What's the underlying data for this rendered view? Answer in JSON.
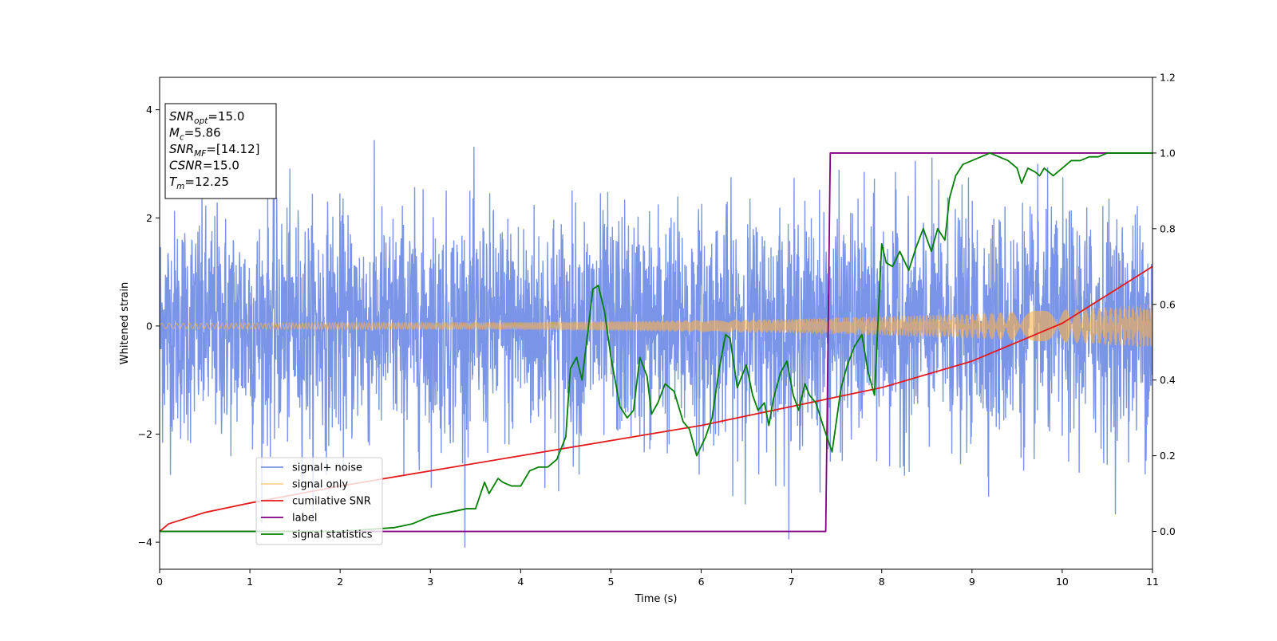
{
  "chart_data": {
    "type": "line",
    "xlabel": "Time (s)",
    "ylabel": "Whitened strain",
    "xlim": [
      0,
      11
    ],
    "ylim": [
      -4.5,
      4.6
    ],
    "y2lim": [
      -0.1,
      1.2
    ],
    "xticks": [
      "0",
      "1",
      "2",
      "3",
      "4",
      "5",
      "6",
      "7",
      "8",
      "9",
      "10",
      "11"
    ],
    "yticks": [
      "−4",
      "−2",
      "0",
      "2",
      "4"
    ],
    "y2ticks": [
      "0.0",
      "0.2",
      "0.4",
      "0.6",
      "0.8",
      "1.0",
      "1.2"
    ],
    "grid": false,
    "legend_position": "lower-left",
    "stats_box": [
      {
        "sym": "SNR",
        "sub": "opt",
        "value": "=15.0"
      },
      {
        "sym": "M",
        "sub": "c",
        "value": "=5.86"
      },
      {
        "sym": "SNR",
        "sub": "MF",
        "value": "=[14.12]"
      },
      {
        "sym": "CSNR",
        "sub": "",
        "value": "=15.0"
      },
      {
        "sym": "T",
        "sub": "m",
        "value": "=12.25"
      }
    ],
    "series": [
      {
        "name": "signal+ noise",
        "color": "#6b88e6",
        "axis": "left",
        "kind": "noise",
        "amplitude_range": [
          -4.1,
          4.2
        ]
      },
      {
        "name": "signal only",
        "color": "#ffb347",
        "axis": "left",
        "kind": "chirp",
        "envelope": {
          "t": [
            0,
            4,
            7,
            8,
            9,
            10,
            11
          ],
          "amp": [
            0.05,
            0.07,
            0.13,
            0.18,
            0.23,
            0.3,
            0.4
          ]
        }
      },
      {
        "name": "cumilative SNR",
        "color": "#e41a1c",
        "axis": "right",
        "x": [
          0,
          0.1,
          0.5,
          1,
          2,
          3,
          4,
          5,
          6,
          7,
          7.5,
          8,
          9,
          10,
          11
        ],
        "y": [
          0.0,
          0.02,
          0.05,
          0.075,
          0.12,
          0.16,
          0.2,
          0.24,
          0.28,
          0.33,
          0.355,
          0.38,
          0.45,
          0.55,
          0.7
        ]
      },
      {
        "name": "label",
        "color": "#800080",
        "axis": "right",
        "x": [
          0,
          7.38,
          7.43,
          11
        ],
        "y": [
          0,
          0,
          1,
          1
        ]
      },
      {
        "name": "signal statistics",
        "color": "#007f00",
        "axis": "right",
        "x": [
          0,
          2.0,
          2.6,
          2.8,
          3.0,
          3.2,
          3.4,
          3.5,
          3.6,
          3.65,
          3.75,
          3.8,
          3.9,
          4.0,
          4.05,
          4.1,
          4.2,
          4.3,
          4.4,
          4.5,
          4.55,
          4.62,
          4.68,
          4.73,
          4.8,
          4.86,
          4.93,
          5.0,
          5.1,
          5.18,
          5.25,
          5.32,
          5.4,
          5.45,
          5.52,
          5.6,
          5.7,
          5.8,
          5.87,
          5.95,
          6.05,
          6.12,
          6.2,
          6.27,
          6.32,
          6.4,
          6.5,
          6.57,
          6.63,
          6.7,
          6.75,
          6.8,
          6.88,
          6.95,
          7.02,
          7.08,
          7.15,
          7.2,
          7.27,
          7.35,
          7.45,
          7.55,
          7.62,
          7.7,
          7.78,
          7.85,
          7.92,
          8.0,
          8.05,
          8.12,
          8.2,
          8.3,
          8.38,
          8.46,
          8.55,
          8.62,
          8.7,
          8.75,
          8.82,
          8.9,
          9.0,
          9.1,
          9.2,
          9.3,
          9.4,
          9.5,
          9.55,
          9.62,
          9.7,
          9.75,
          9.8,
          9.9,
          10.0,
          10.1,
          10.2,
          10.3,
          10.4,
          10.5,
          11.0
        ],
        "y": [
          0,
          0.0,
          0.01,
          0.02,
          0.04,
          0.05,
          0.06,
          0.06,
          0.13,
          0.1,
          0.14,
          0.13,
          0.12,
          0.12,
          0.14,
          0.16,
          0.17,
          0.17,
          0.19,
          0.25,
          0.43,
          0.46,
          0.4,
          0.5,
          0.64,
          0.65,
          0.58,
          0.46,
          0.33,
          0.3,
          0.32,
          0.46,
          0.41,
          0.31,
          0.34,
          0.39,
          0.37,
          0.29,
          0.27,
          0.2,
          0.25,
          0.3,
          0.43,
          0.52,
          0.51,
          0.38,
          0.44,
          0.36,
          0.32,
          0.34,
          0.28,
          0.35,
          0.42,
          0.45,
          0.36,
          0.32,
          0.39,
          0.36,
          0.34,
          0.28,
          0.21,
          0.38,
          0.44,
          0.49,
          0.52,
          0.42,
          0.36,
          0.76,
          0.71,
          0.7,
          0.74,
          0.69,
          0.75,
          0.8,
          0.74,
          0.8,
          0.77,
          0.88,
          0.94,
          0.97,
          0.98,
          0.99,
          1.0,
          0.99,
          0.98,
          0.96,
          0.92,
          0.96,
          0.95,
          0.94,
          0.96,
          0.94,
          0.96,
          0.98,
          0.98,
          0.99,
          0.99,
          1.0,
          1.0
        ]
      }
    ]
  }
}
